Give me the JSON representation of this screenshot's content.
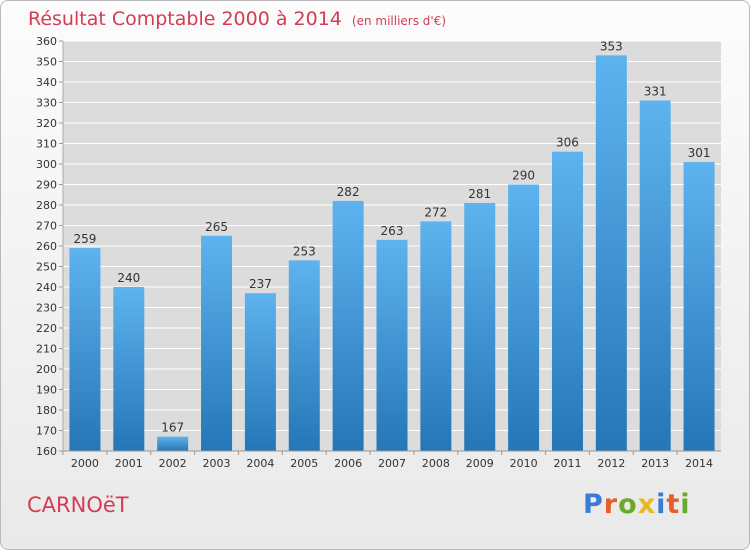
{
  "header": {
    "title": "Résultat Comptable 2000 à 2014",
    "unit": "(en milliers d'€)"
  },
  "footer": {
    "city": "CARNOëT",
    "logo": "Proxiti",
    "logo_colors": [
      "#3a7bd5",
      "#e85c2b",
      "#6aaa2a",
      "#e8b91c",
      "#3a7bd5",
      "#e85c2b",
      "#6aaa2a"
    ]
  },
  "colors": {
    "bar_top": "#5eb3ee",
    "bar_bottom": "#2576b6",
    "grid": "#ffffff",
    "text": "#333333",
    "accent": "#d33c52"
  },
  "chart_data": {
    "type": "bar",
    "categories": [
      "2000",
      "2001",
      "2002",
      "2003",
      "2004",
      "2005",
      "2006",
      "2007",
      "2008",
      "2009",
      "2010",
      "2011",
      "2012",
      "2013",
      "2014"
    ],
    "values": [
      259,
      240,
      167,
      265,
      237,
      253,
      282,
      263,
      272,
      281,
      290,
      306,
      353,
      331,
      301
    ],
    "title": "Résultat Comptable 2000 à 2014",
    "xlabel": "",
    "ylabel": "",
    "ylim": [
      160,
      360
    ],
    "ytick_step": 10,
    "grid": true,
    "legend": "none"
  }
}
